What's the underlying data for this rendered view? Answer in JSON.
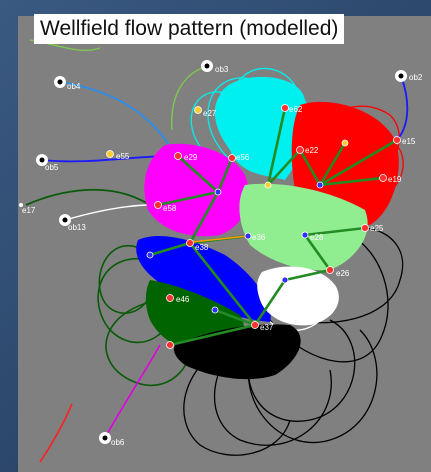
{
  "title": "Wellfield flow pattern (modelled)",
  "colors": {
    "background": "#808080",
    "frame": "#2f4a6c",
    "zone_cyan": "#00f0f0",
    "zone_magenta": "#ff00ff",
    "zone_red": "#ff0000",
    "zone_lightgreen": "#90ee90",
    "zone_blue": "#0000ff",
    "zone_darkgreen": "#006400",
    "zone_white": "#ffffff",
    "zone_black": "#000000",
    "pipe": "#228b22"
  },
  "observation_wells": [
    {
      "label": "ob3"
    },
    {
      "label": "ob4"
    },
    {
      "label": "ob2"
    },
    {
      "label": "ob5"
    },
    {
      "label": "ob13"
    },
    {
      "label": "ob6"
    }
  ],
  "production_wells": [
    {
      "label": "e62"
    },
    {
      "label": "e27"
    },
    {
      "label": "e29"
    },
    {
      "label": "e56"
    },
    {
      "label": "e55"
    },
    {
      "label": "e22"
    },
    {
      "label": "e15"
    },
    {
      "label": "e19"
    },
    {
      "label": "e58"
    },
    {
      "label": "e38"
    },
    {
      "label": "e36"
    },
    {
      "label": "e28"
    },
    {
      "label": "e25"
    },
    {
      "label": "e26"
    },
    {
      "label": "e33"
    },
    {
      "label": "e46"
    },
    {
      "label": "e37"
    },
    {
      "label": "e17"
    }
  ]
}
